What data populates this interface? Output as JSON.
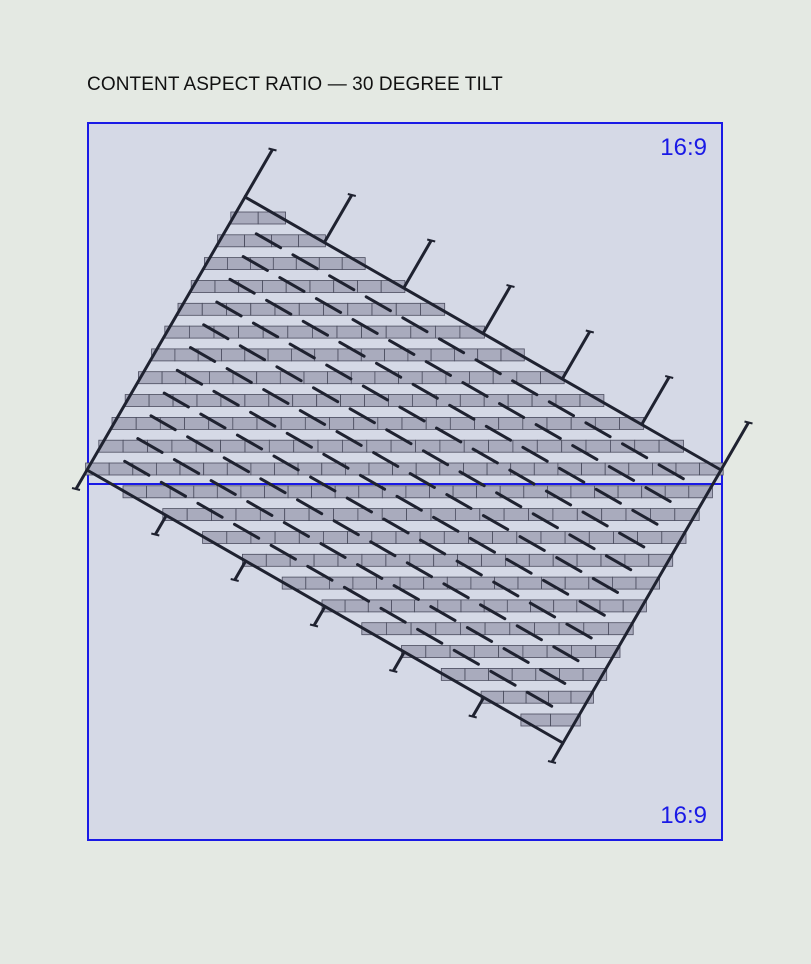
{
  "header": {
    "title": "CONTENT ASPECT RATIO — 30 DEGREE TILT"
  },
  "frame": {
    "top_ratio_label": "16:9",
    "bottom_ratio_label": "16:9"
  },
  "colors": {
    "background": "#e4e9e3",
    "frame_border": "#1a1ae6",
    "frame_fill": "#d5d9e6",
    "line": "#1f2230",
    "brick_fill": "#a9abbd",
    "brick_stroke": "#4a4c5e"
  },
  "diagram": {
    "tilt_degrees": 30,
    "brick_rows": 23
  }
}
